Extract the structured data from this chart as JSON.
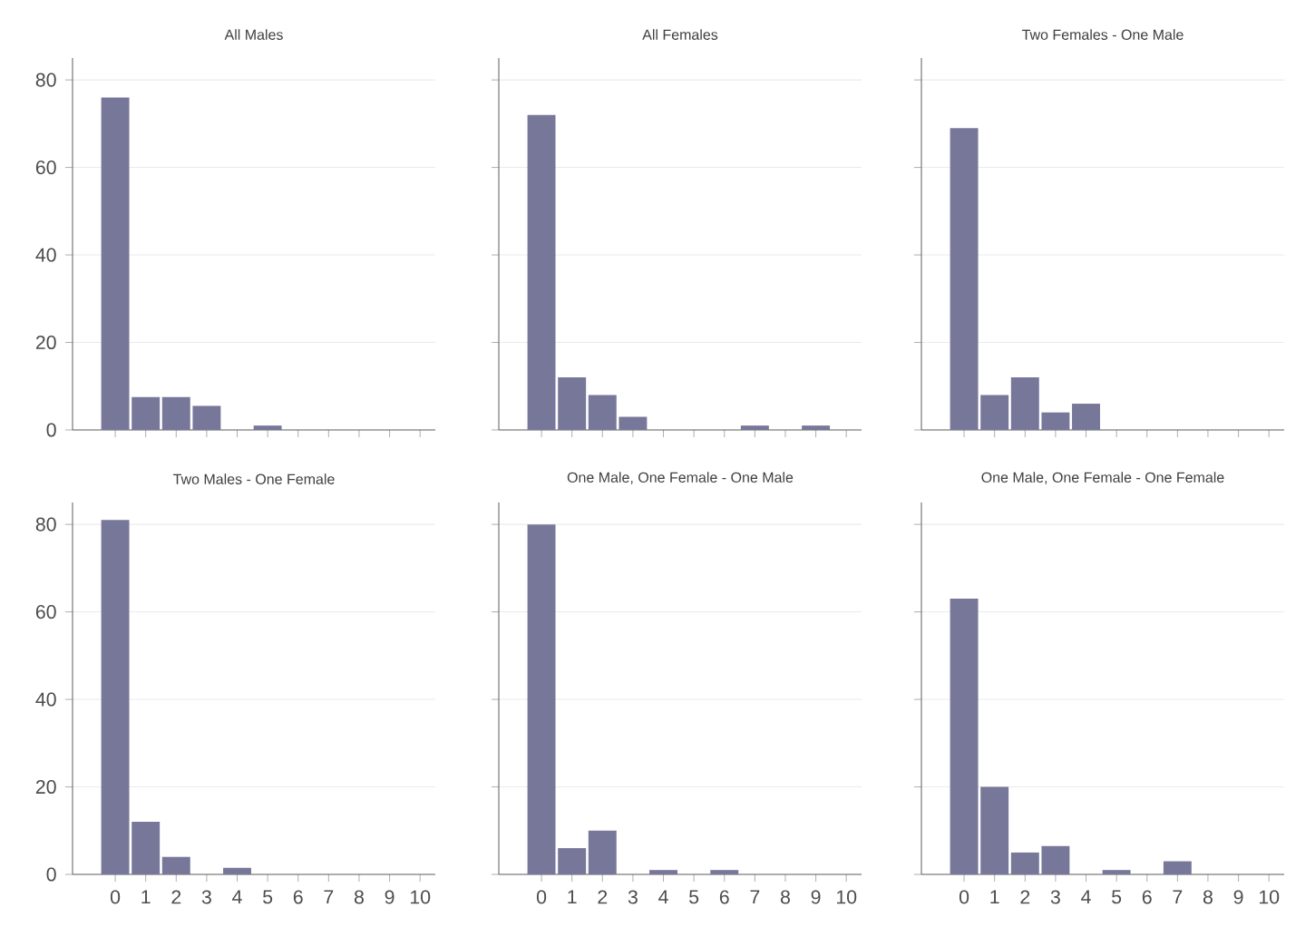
{
  "chart_data": [
    {
      "type": "bar",
      "title": "All Males",
      "categories": [
        "0",
        "1",
        "2",
        "3",
        "4",
        "5",
        "6",
        "7",
        "8",
        "9",
        "10"
      ],
      "values": [
        76,
        7.5,
        7.5,
        5.5,
        0,
        1,
        0,
        0,
        0,
        0,
        0
      ],
      "color": "#77779a",
      "ylim": [
        0,
        85
      ],
      "yticks": [
        0,
        20,
        40,
        60,
        80
      ],
      "grid": "y",
      "tick_labels": "y"
    },
    {
      "type": "bar",
      "title": "All Females",
      "categories": [
        "0",
        "1",
        "2",
        "3",
        "4",
        "5",
        "6",
        "7",
        "8",
        "9",
        "10"
      ],
      "values": [
        72,
        12,
        8,
        3,
        0,
        0,
        0,
        1,
        0,
        1,
        0
      ],
      "color": "#77779a",
      "ylim": [
        0,
        85
      ],
      "yticks": [
        0,
        20,
        40,
        60,
        80
      ],
      "grid": "y",
      "tick_labels": false
    },
    {
      "type": "bar",
      "title": "Two Females - One Male",
      "categories": [
        "0",
        "1",
        "2",
        "3",
        "4",
        "5",
        "6",
        "7",
        "8",
        "9",
        "10"
      ],
      "values": [
        69,
        8,
        12,
        4,
        6,
        0,
        0,
        0,
        0,
        0,
        0
      ],
      "color": "#77779a",
      "ylim": [
        0,
        85
      ],
      "yticks": [
        0,
        20,
        40,
        60,
        80
      ],
      "grid": "y",
      "tick_labels": false
    },
    {
      "type": "bar",
      "title": "Two Males - One Female",
      "categories": [
        "0",
        "1",
        "2",
        "3",
        "4",
        "5",
        "6",
        "7",
        "8",
        "9",
        "10"
      ],
      "values": [
        81,
        12,
        4,
        0,
        1.5,
        0,
        0,
        0,
        0,
        0,
        0
      ],
      "color": "#77779a",
      "ylim": [
        0,
        85
      ],
      "yticks": [
        0,
        20,
        40,
        60,
        80
      ],
      "grid": "y"
    },
    {
      "type": "bar",
      "title": "One Male, One Female - One Male",
      "categories": [
        "0",
        "1",
        "2",
        "3",
        "4",
        "5",
        "6",
        "7",
        "8",
        "9",
        "10"
      ],
      "values": [
        80,
        6,
        10,
        0,
        1,
        0,
        1,
        0,
        0,
        0,
        0
      ],
      "color": "#77779a",
      "ylim": [
        0,
        85
      ],
      "yticks": [
        0,
        20,
        40,
        60,
        80
      ],
      "grid": "y",
      "tick_labels": "x"
    },
    {
      "type": "bar",
      "title": "One Male, One Female - One Female",
      "categories": [
        "0",
        "1",
        "2",
        "3",
        "4",
        "5",
        "6",
        "7",
        "8",
        "9",
        "10"
      ],
      "values": [
        63,
        20,
        5,
        6.5,
        0,
        1,
        0,
        3,
        0,
        0,
        0
      ],
      "color": "#77779a",
      "ylim": [
        0,
        85
      ],
      "yticks": [
        0,
        20,
        40,
        60,
        80
      ],
      "grid": "y",
      "tick_labels": "x"
    }
  ]
}
